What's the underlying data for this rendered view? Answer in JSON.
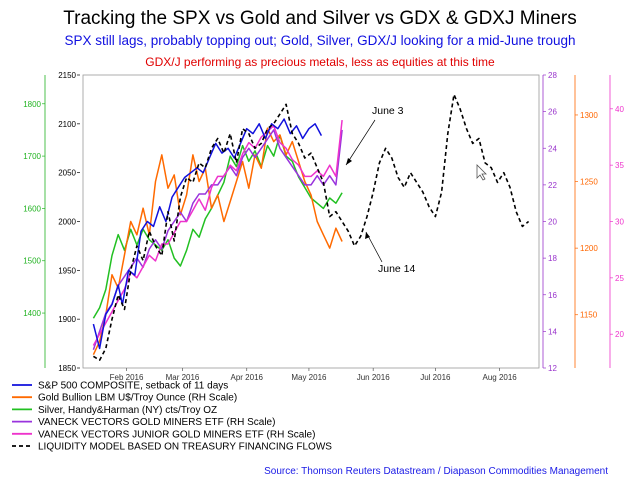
{
  "chart_data": {
    "type": "line",
    "title": "Tracking the SPX vs Gold and Silver vs GDX & GDXJ Miners",
    "subtitle": "SPX still lags, probably topping out; Gold, Silver, GDX/J looking for a mid-June trough",
    "subtitle2": "GDX/J performing as precious metals, less as equities at this time",
    "x_ticks": [
      "Feb 2016",
      "Mar 2016",
      "Apr 2016",
      "May 2016",
      "Jun 2016",
      "Jul 2016",
      "Aug 2016"
    ],
    "axes": {
      "spx": {
        "ticks": [
          "1850",
          "1900",
          "1950",
          "2000",
          "2050",
          "2100",
          "2150"
        ],
        "range": [
          1850,
          2150
        ],
        "color": "#000000"
      },
      "silver": {
        "ticks": [
          "1400",
          "1500",
          "1600",
          "1700",
          "1800"
        ],
        "range": [
          1295,
          1855
        ],
        "color": "#22b322"
      },
      "gdx": {
        "ticks": [
          "12",
          "14",
          "16",
          "18",
          "20",
          "22",
          "24",
          "26",
          "28"
        ],
        "range": [
          12,
          28
        ],
        "color": "#9933cc"
      },
      "gold": {
        "ticks": [
          "1150",
          "1200",
          "1250",
          "1300"
        ],
        "range": [
          1110,
          1330
        ],
        "color": "#ff6600"
      },
      "gdxj": {
        "ticks": [
          "20",
          "25",
          "30",
          "35",
          "40"
        ],
        "range": [
          17,
          43
        ],
        "color": "#ee33cc"
      }
    },
    "series": [
      {
        "name": "S&P 500 COMPOSITE, setback of 11 days",
        "color": "#1111dd",
        "axis": "spx",
        "dash": false,
        "values": [
          [
            5,
            1895
          ],
          [
            8,
            1870
          ],
          [
            11,
            1905
          ],
          [
            14,
            1915
          ],
          [
            17,
            1935
          ],
          [
            19,
            1915
          ],
          [
            22,
            1950
          ],
          [
            25,
            1945
          ],
          [
            28,
            1990
          ],
          [
            31,
            2000
          ],
          [
            34,
            1995
          ],
          [
            37,
            2015
          ],
          [
            40,
            2000
          ],
          [
            43,
            2025
          ],
          [
            46,
            2035
          ],
          [
            49,
            2045
          ],
          [
            52,
            2050
          ],
          [
            55,
            2055
          ],
          [
            58,
            2050
          ],
          [
            61,
            2065
          ],
          [
            64,
            2080
          ],
          [
            67,
            2070
          ],
          [
            70,
            2075
          ],
          [
            73,
            2065
          ],
          [
            76,
            2080
          ],
          [
            79,
            2095
          ],
          [
            82,
            2090
          ],
          [
            85,
            2100
          ],
          [
            88,
            2085
          ],
          [
            91,
            2100
          ],
          [
            94,
            2095
          ],
          [
            97,
            2105
          ],
          [
            100,
            2090
          ],
          [
            103,
            2098
          ],
          [
            106,
            2085
          ],
          [
            109,
            2095
          ],
          [
            112,
            2100
          ],
          [
            115,
            2088
          ]
        ]
      },
      {
        "name": "Gold Bullion LBM U$/Troy Ounce (RH Scale)",
        "color": "#ff6a00",
        "axis": "gold",
        "dash": false,
        "values": [
          [
            5,
            1120
          ],
          [
            8,
            1130
          ],
          [
            11,
            1150
          ],
          [
            14,
            1180
          ],
          [
            17,
            1170
          ],
          [
            20,
            1195
          ],
          [
            23,
            1220
          ],
          [
            26,
            1210
          ],
          [
            29,
            1230
          ],
          [
            32,
            1210
          ],
          [
            35,
            1250
          ],
          [
            38,
            1270
          ],
          [
            41,
            1245
          ],
          [
            44,
            1255
          ],
          [
            47,
            1225
          ],
          [
            50,
            1240
          ],
          [
            53,
            1270
          ],
          [
            56,
            1250
          ],
          [
            59,
            1260
          ],
          [
            62,
            1230
          ],
          [
            65,
            1240
          ],
          [
            68,
            1220
          ],
          [
            71,
            1235
          ],
          [
            74,
            1250
          ],
          [
            77,
            1265
          ],
          [
            80,
            1245
          ],
          [
            83,
            1270
          ],
          [
            86,
            1260
          ],
          [
            89,
            1290
          ],
          [
            92,
            1280
          ],
          [
            95,
            1285
          ],
          [
            98,
            1270
          ],
          [
            101,
            1280
          ],
          [
            104,
            1265
          ],
          [
            107,
            1250
          ],
          [
            110,
            1240
          ],
          [
            113,
            1220
          ],
          [
            116,
            1210
          ],
          [
            119,
            1200
          ],
          [
            122,
            1215
          ],
          [
            125,
            1205
          ]
        ]
      },
      {
        "name": "Silver, Handy&Harman (NY) cts/Troy OZ",
        "color": "#22c022",
        "axis": "silver",
        "dash": false,
        "values": [
          [
            5,
            1390
          ],
          [
            8,
            1410
          ],
          [
            11,
            1445
          ],
          [
            14,
            1510
          ],
          [
            17,
            1550
          ],
          [
            20,
            1520
          ],
          [
            23,
            1560
          ],
          [
            26,
            1530
          ],
          [
            29,
            1560
          ],
          [
            32,
            1540
          ],
          [
            35,
            1530
          ],
          [
            38,
            1520
          ],
          [
            41,
            1540
          ],
          [
            44,
            1505
          ],
          [
            47,
            1490
          ],
          [
            50,
            1520
          ],
          [
            53,
            1560
          ],
          [
            56,
            1545
          ],
          [
            59,
            1580
          ],
          [
            62,
            1600
          ],
          [
            65,
            1625
          ],
          [
            68,
            1650
          ],
          [
            71,
            1700
          ],
          [
            74,
            1680
          ],
          [
            77,
            1720
          ],
          [
            80,
            1690
          ],
          [
            83,
            1710
          ],
          [
            86,
            1680
          ],
          [
            89,
            1720
          ],
          [
            92,
            1700
          ],
          [
            95,
            1740
          ],
          [
            98,
            1700
          ],
          [
            101,
            1690
          ],
          [
            104,
            1660
          ],
          [
            107,
            1640
          ],
          [
            110,
            1620
          ],
          [
            113,
            1610
          ],
          [
            116,
            1600
          ],
          [
            119,
            1620
          ],
          [
            122,
            1610
          ],
          [
            125,
            1630
          ]
        ]
      },
      {
        "name": "VANECK VECTORS GOLD MINERS ETF (RH Scale)",
        "color": "#9933dd",
        "axis": "gdx",
        "dash": false,
        "values": [
          [
            5,
            13
          ],
          [
            8,
            14
          ],
          [
            11,
            15
          ],
          [
            14,
            15.5
          ],
          [
            17,
            16.5
          ],
          [
            20,
            17
          ],
          [
            23,
            17.5
          ],
          [
            26,
            18
          ],
          [
            29,
            17.5
          ],
          [
            32,
            18.5
          ],
          [
            35,
            19
          ],
          [
            38,
            18.5
          ],
          [
            41,
            19.5
          ],
          [
            44,
            20
          ],
          [
            47,
            20.5
          ],
          [
            50,
            20
          ],
          [
            53,
            21
          ],
          [
            56,
            21.5
          ],
          [
            59,
            21.5
          ],
          [
            62,
            22
          ],
          [
            65,
            22
          ],
          [
            68,
            22.5
          ],
          [
            71,
            23
          ],
          [
            74,
            22.5
          ],
          [
            77,
            23.5
          ],
          [
            80,
            24
          ],
          [
            83,
            23.5
          ],
          [
            86,
            24
          ],
          [
            89,
            24.5
          ],
          [
            92,
            25
          ],
          [
            95,
            24
          ],
          [
            98,
            23.5
          ],
          [
            101,
            23
          ],
          [
            104,
            22.5
          ],
          [
            107,
            22
          ],
          [
            110,
            22
          ],
          [
            113,
            22.5
          ],
          [
            116,
            22
          ],
          [
            119,
            22.5
          ],
          [
            122,
            22
          ],
          [
            125,
            25
          ]
        ]
      },
      {
        "name": "VANECK VECTORS JUNIOR GOLD MINERS ETF (RH Scale)",
        "color": "#ee33cc",
        "axis": "gdxj",
        "dash": false,
        "values": [
          [
            5,
            19
          ],
          [
            8,
            20
          ],
          [
            11,
            21
          ],
          [
            14,
            22
          ],
          [
            17,
            23
          ],
          [
            20,
            24
          ],
          [
            23,
            25.5
          ],
          [
            26,
            25
          ],
          [
            29,
            26
          ],
          [
            32,
            27
          ],
          [
            35,
            26.5
          ],
          [
            38,
            28
          ],
          [
            41,
            28
          ],
          [
            44,
            29
          ],
          [
            47,
            30
          ],
          [
            50,
            30
          ],
          [
            53,
            31
          ],
          [
            56,
            32
          ],
          [
            59,
            31
          ],
          [
            62,
            33
          ],
          [
            65,
            34
          ],
          [
            68,
            34
          ],
          [
            71,
            35
          ],
          [
            74,
            34.5
          ],
          [
            77,
            36
          ],
          [
            80,
            37
          ],
          [
            83,
            36.5
          ],
          [
            86,
            37.5
          ],
          [
            89,
            38
          ],
          [
            92,
            38.5
          ],
          [
            95,
            37
          ],
          [
            98,
            36.5
          ],
          [
            101,
            35.5
          ],
          [
            104,
            35
          ],
          [
            107,
            34
          ],
          [
            110,
            34
          ],
          [
            113,
            34.5
          ],
          [
            116,
            34
          ],
          [
            119,
            35
          ],
          [
            122,
            34
          ],
          [
            125,
            39
          ]
        ]
      },
      {
        "name": "LIQUIDITY MODEL BASED ON TREASURY FINANCING FLOWS",
        "color": "#000000",
        "axis": "spx",
        "dash": true,
        "values": [
          [
            5,
            1862
          ],
          [
            8,
            1858
          ],
          [
            11,
            1870
          ],
          [
            14,
            1900
          ],
          [
            17,
            1925
          ],
          [
            20,
            1910
          ],
          [
            23,
            1950
          ],
          [
            26,
            1975
          ],
          [
            29,
            1960
          ],
          [
            32,
            1990
          ],
          [
            35,
            1975
          ],
          [
            38,
            1965
          ],
          [
            41,
            2010
          ],
          [
            44,
            1980
          ],
          [
            47,
            2025
          ],
          [
            50,
            2045
          ],
          [
            53,
            2040
          ],
          [
            56,
            2060
          ],
          [
            59,
            2055
          ],
          [
            62,
            2075
          ],
          [
            65,
            2085
          ],
          [
            68,
            2070
          ],
          [
            71,
            2090
          ],
          [
            74,
            2060
          ],
          [
            77,
            2095
          ],
          [
            80,
            2090
          ],
          [
            83,
            2075
          ],
          [
            86,
            2080
          ],
          [
            89,
            2095
          ],
          [
            92,
            2100
          ],
          [
            95,
            2110
          ],
          [
            98,
            2120
          ],
          [
            101,
            2090
          ],
          [
            104,
            2080
          ],
          [
            107,
            2065
          ],
          [
            110,
            2070
          ],
          [
            113,
            2055
          ],
          [
            116,
            2040
          ],
          [
            119,
            2005
          ],
          [
            122,
            2010
          ],
          [
            125,
            2000
          ],
          [
            128,
            1990
          ],
          [
            131,
            1975
          ],
          [
            134,
            1985
          ],
          [
            137,
            2005
          ],
          [
            140,
            2030
          ],
          [
            143,
            2060
          ],
          [
            146,
            2075
          ],
          [
            149,
            2065
          ],
          [
            152,
            2045
          ],
          [
            155,
            2035
          ],
          [
            158,
            2050
          ],
          [
            161,
            2040
          ],
          [
            164,
            2030
          ],
          [
            167,
            2015
          ],
          [
            170,
            2005
          ],
          [
            173,
            2030
          ],
          [
            176,
            2090
          ],
          [
            179,
            2130
          ],
          [
            182,
            2115
          ],
          [
            185,
            2095
          ],
          [
            188,
            2080
          ],
          [
            191,
            2085
          ],
          [
            194,
            2060
          ],
          [
            197,
            2055
          ],
          [
            200,
            2040
          ],
          [
            203,
            2050
          ],
          [
            206,
            2035
          ],
          [
            209,
            2010
          ],
          [
            212,
            1995
          ],
          [
            215,
            2000
          ]
        ]
      }
    ],
    "annotations": [
      {
        "text": "June 3"
      },
      {
        "text": "June 14"
      }
    ],
    "source": "Source: Thomson Reuters Datastream / Diapason Commodities Management"
  }
}
